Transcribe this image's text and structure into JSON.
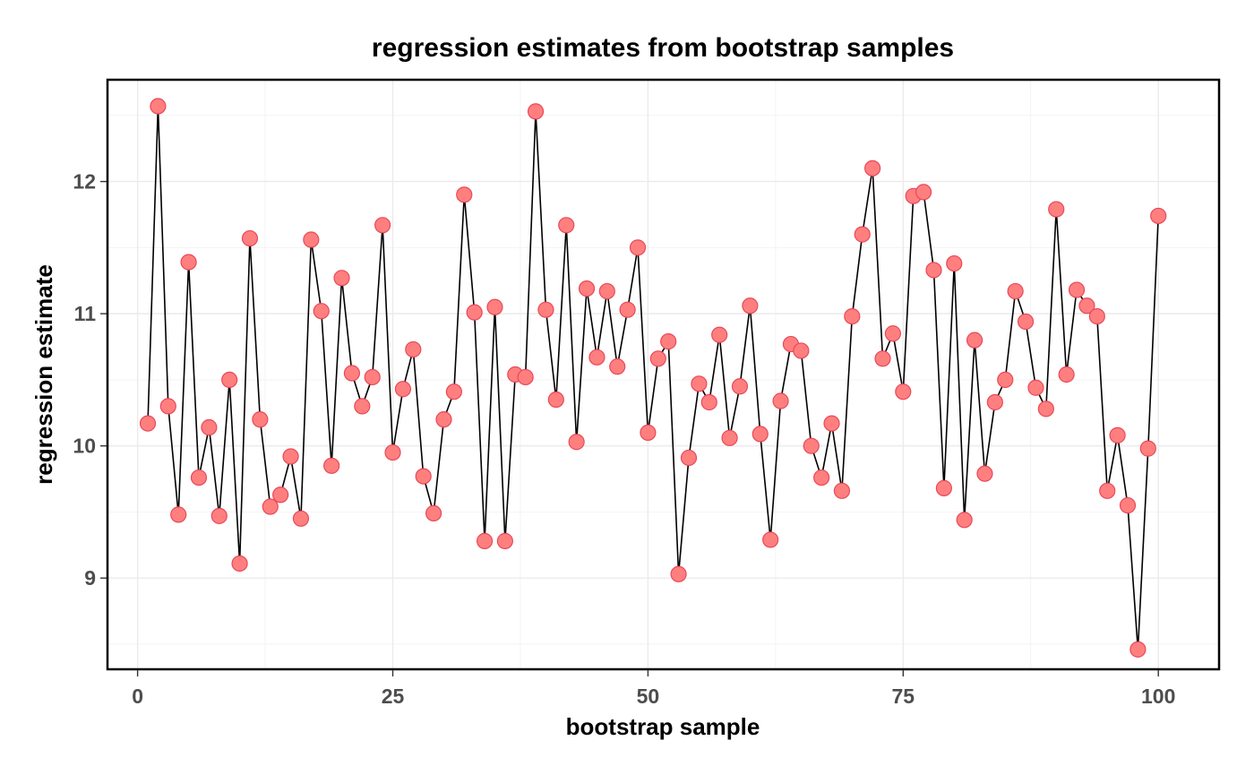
{
  "chart_data": {
    "type": "scatter",
    "title": "regression estimates from bootstrap samples",
    "xlabel": "bootstrap sample",
    "ylabel": "regression estimate",
    "xlim": [
      -2.95,
      105.95
    ],
    "ylim": [
      8.31,
      12.77
    ],
    "x_ticks": [
      0,
      25,
      50,
      75,
      100
    ],
    "x_tick_labels": [
      "0",
      "25",
      "50",
      "75",
      "100"
    ],
    "y_ticks": [
      9,
      10,
      11,
      12
    ],
    "y_tick_labels": [
      "9",
      "10",
      "11",
      "12"
    ],
    "grid": true,
    "point_color": "#ff7f7f",
    "point_edge_color": "#e8495a",
    "line_color": "#000000",
    "connected_line": true,
    "x": [
      1,
      2,
      3,
      4,
      5,
      6,
      7,
      8,
      9,
      10,
      11,
      12,
      13,
      14,
      15,
      16,
      17,
      18,
      19,
      20,
      21,
      22,
      23,
      24,
      25,
      26,
      27,
      28,
      29,
      30,
      31,
      32,
      33,
      34,
      35,
      36,
      37,
      38,
      39,
      40,
      41,
      42,
      43,
      44,
      45,
      46,
      47,
      48,
      49,
      50,
      51,
      52,
      53,
      54,
      55,
      56,
      57,
      58,
      59,
      60,
      61,
      62,
      63,
      64,
      65,
      66,
      67,
      68,
      69,
      70,
      71,
      72,
      73,
      74,
      75,
      76,
      77,
      78,
      79,
      80,
      81,
      82,
      83,
      84,
      85,
      86,
      87,
      88,
      89,
      90,
      91,
      92,
      93,
      94,
      95,
      96,
      97,
      98,
      99,
      100
    ],
    "y": [
      10.17,
      12.57,
      10.3,
      9.48,
      11.39,
      9.76,
      10.14,
      9.47,
      10.5,
      9.11,
      11.57,
      10.2,
      9.54,
      9.63,
      9.92,
      9.45,
      11.56,
      11.02,
      9.85,
      11.27,
      10.55,
      10.3,
      10.52,
      11.67,
      9.95,
      10.43,
      10.73,
      9.77,
      9.49,
      10.2,
      10.41,
      11.9,
      11.01,
      9.28,
      11.05,
      9.28,
      10.54,
      10.52,
      12.53,
      11.03,
      10.35,
      11.67,
      10.03,
      11.19,
      10.67,
      11.17,
      10.6,
      11.03,
      11.5,
      10.1,
      10.66,
      10.79,
      9.03,
      9.91,
      10.47,
      10.33,
      10.84,
      10.06,
      10.45,
      11.06,
      10.09,
      9.29,
      10.34,
      10.77,
      10.72,
      10.0,
      9.76,
      10.17,
      9.66,
      10.98,
      11.6,
      12.1,
      10.66,
      10.85,
      10.41,
      11.89,
      11.92,
      11.33,
      9.68,
      11.38,
      9.44,
      10.8,
      9.79,
      10.33,
      10.5,
      11.17,
      10.94,
      10.44,
      10.28,
      11.79,
      10.54,
      11.18,
      11.06,
      10.98,
      9.66,
      10.08,
      9.55,
      8.46,
      9.98,
      11.74
    ]
  }
}
